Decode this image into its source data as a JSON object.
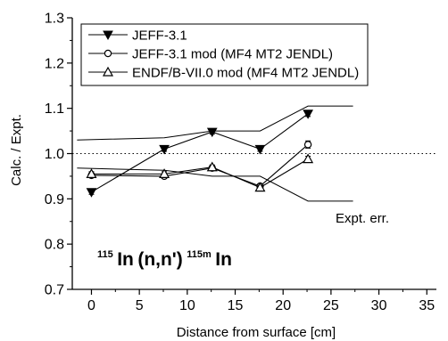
{
  "chart_data": {
    "type": "line",
    "xlabel": "Distance from surface [cm]",
    "ylabel": "Calc. / Expt.",
    "xlim": [
      -2,
      36
    ],
    "ylim": [
      0.7,
      1.3
    ],
    "xticks": [
      0,
      5,
      10,
      15,
      20,
      25,
      30,
      35
    ],
    "yticks": [
      0.7,
      0.8,
      0.9,
      1.0,
      1.1,
      1.2,
      1.3
    ],
    "xtick_labels": [
      "0",
      "5",
      "10",
      "15",
      "20",
      "25",
      "30",
      "35"
    ],
    "ytick_labels": [
      "0.7",
      "0.8",
      "0.9",
      "1.0",
      "1.1",
      "1.2",
      "1.3"
    ],
    "grid": false,
    "legend_position": "top-left",
    "series": [
      {
        "name": "JEFF-3.1",
        "marker": "filled-down-triangle",
        "x": [
          0,
          7.6,
          12.6,
          17.6,
          22.6
        ],
        "y": [
          0.915,
          1.01,
          1.048,
          1.01,
          1.088
        ],
        "err": [
          0.005,
          0.005,
          0.005,
          0.005,
          0.006
        ]
      },
      {
        "name": "JEFF-3.1 mod (MF4 MT2 JENDL)",
        "marker": "open-circle",
        "x": [
          0,
          7.6,
          12.6,
          17.6,
          22.6
        ],
        "y": [
          0.952,
          0.95,
          0.968,
          0.928,
          1.02
        ],
        "err": [
          0.005,
          0.005,
          0.005,
          0.005,
          0.008
        ]
      },
      {
        "name": "ENDF/B-VII.0 mod (MF4 MT2 JENDL)",
        "marker": "open-up-triangle",
        "x": [
          0,
          7.6,
          12.6,
          17.6,
          22.6
        ],
        "y": [
          0.955,
          0.955,
          0.97,
          0.925,
          0.988
        ],
        "err": [
          0.005,
          0.005,
          0.005,
          0.005,
          0.006
        ]
      }
    ],
    "error_band": {
      "label": "Expt. err.",
      "upper": {
        "x": [
          -1.5,
          7.6,
          12.6,
          17.6,
          22.6,
          27.3
        ],
        "y": [
          1.03,
          1.035,
          1.05,
          1.05,
          1.105,
          1.105
        ]
      },
      "lower": {
        "x": [
          -1.5,
          7.6,
          12.6,
          17.6,
          22.6,
          27.3
        ],
        "y": [
          0.968,
          0.963,
          0.95,
          0.95,
          0.895,
          0.895
        ]
      }
    },
    "reference_line": {
      "y": 1.0,
      "style": "dotted"
    },
    "annotation": {
      "mass1": "115",
      "element1": "In",
      "reaction": "(n,n')",
      "mass2": "115m",
      "element2": "In"
    }
  }
}
